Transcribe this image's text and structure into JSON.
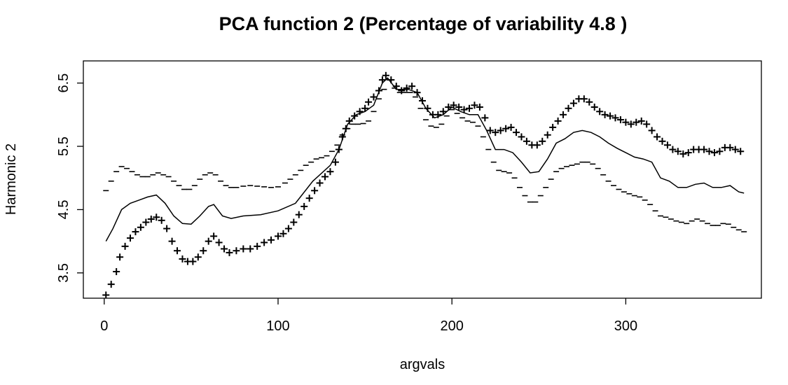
{
  "chart_data": {
    "type": "line",
    "title": "PCA function 2 (Percentage of variability 4.8 )",
    "xlabel": "argvals",
    "ylabel": "Harmonic 2",
    "xlim": [
      -12,
      378
    ],
    "ylim": [
      3.1,
      6.85
    ],
    "x_ticks": [
      0,
      100,
      200,
      300
    ],
    "y_ticks": [
      3.5,
      4.5,
      5.5,
      6.5
    ],
    "grid": false,
    "legend": "none",
    "series": [
      {
        "style": "line",
        "points": [
          [
            1,
            4.0
          ],
          [
            5,
            4.2
          ],
          [
            10,
            4.5
          ],
          [
            15,
            4.6
          ],
          [
            20,
            4.65
          ],
          [
            25,
            4.7
          ],
          [
            30,
            4.73
          ],
          [
            35,
            4.6
          ],
          [
            40,
            4.4
          ],
          [
            45,
            4.28
          ],
          [
            50,
            4.27
          ],
          [
            55,
            4.4
          ],
          [
            60,
            4.55
          ],
          [
            63,
            4.58
          ],
          [
            68,
            4.4
          ],
          [
            73,
            4.36
          ],
          [
            80,
            4.4
          ],
          [
            90,
            4.42
          ],
          [
            100,
            4.48
          ],
          [
            110,
            4.6
          ],
          [
            120,
            4.95
          ],
          [
            130,
            5.2
          ],
          [
            135,
            5.45
          ],
          [
            140,
            5.85
          ],
          [
            145,
            6.0
          ],
          [
            150,
            6.05
          ],
          [
            155,
            6.15
          ],
          [
            160,
            6.5
          ],
          [
            163,
            6.58
          ],
          [
            168,
            6.4
          ],
          [
            175,
            6.4
          ],
          [
            180,
            6.35
          ],
          [
            185,
            6.1
          ],
          [
            190,
            5.95
          ],
          [
            195,
            6.0
          ],
          [
            200,
            6.12
          ],
          [
            205,
            6.05
          ],
          [
            210,
            6.0
          ],
          [
            215,
            6.0
          ],
          [
            220,
            5.75
          ],
          [
            225,
            5.45
          ],
          [
            230,
            5.45
          ],
          [
            235,
            5.4
          ],
          [
            240,
            5.25
          ],
          [
            245,
            5.08
          ],
          [
            250,
            5.1
          ],
          [
            255,
            5.3
          ],
          [
            260,
            5.55
          ],
          [
            265,
            5.62
          ],
          [
            270,
            5.72
          ],
          [
            275,
            5.75
          ],
          [
            280,
            5.72
          ],
          [
            285,
            5.65
          ],
          [
            290,
            5.55
          ],
          [
            295,
            5.47
          ],
          [
            300,
            5.4
          ],
          [
            305,
            5.33
          ],
          [
            310,
            5.3
          ],
          [
            315,
            5.25
          ],
          [
            320,
            5.0
          ],
          [
            325,
            4.95
          ],
          [
            330,
            4.85
          ],
          [
            335,
            4.85
          ],
          [
            340,
            4.9
          ],
          [
            345,
            4.92
          ],
          [
            350,
            4.85
          ],
          [
            355,
            4.85
          ],
          [
            360,
            4.88
          ],
          [
            365,
            4.78
          ],
          [
            368,
            4.76
          ]
        ]
      },
      {
        "style": "plus",
        "points": [
          [
            1,
            3.15
          ],
          [
            4,
            3.32
          ],
          [
            7,
            3.52
          ],
          [
            9,
            3.75
          ],
          [
            12,
            3.92
          ],
          [
            15,
            4.05
          ],
          [
            18,
            4.15
          ],
          [
            21,
            4.22
          ],
          [
            24,
            4.3
          ],
          [
            27,
            4.35
          ],
          [
            30,
            4.38
          ],
          [
            33,
            4.33
          ],
          [
            36,
            4.2
          ],
          [
            39,
            4.0
          ],
          [
            42,
            3.85
          ],
          [
            45,
            3.72
          ],
          [
            48,
            3.68
          ],
          [
            51,
            3.68
          ],
          [
            54,
            3.75
          ],
          [
            57,
            3.85
          ],
          [
            60,
            4.0
          ],
          [
            63,
            4.08
          ],
          [
            66,
            3.98
          ],
          [
            69,
            3.88
          ],
          [
            72,
            3.82
          ],
          [
            76,
            3.85
          ],
          [
            80,
            3.88
          ],
          [
            84,
            3.88
          ],
          [
            88,
            3.92
          ],
          [
            92,
            3.98
          ],
          [
            96,
            4.02
          ],
          [
            100,
            4.08
          ],
          [
            103,
            4.12
          ],
          [
            106,
            4.2
          ],
          [
            109,
            4.3
          ],
          [
            112,
            4.42
          ],
          [
            115,
            4.55
          ],
          [
            118,
            4.68
          ],
          [
            121,
            4.8
          ],
          [
            124,
            4.92
          ],
          [
            127,
            5.02
          ],
          [
            130,
            5.1
          ],
          [
            133,
            5.25
          ],
          [
            135,
            5.45
          ],
          [
            137,
            5.65
          ],
          [
            139,
            5.78
          ],
          [
            141,
            5.9
          ],
          [
            144,
            5.98
          ],
          [
            147,
            6.05
          ],
          [
            150,
            6.1
          ],
          [
            152,
            6.2
          ],
          [
            155,
            6.28
          ],
          [
            158,
            6.38
          ],
          [
            160,
            6.55
          ],
          [
            162,
            6.62
          ],
          [
            165,
            6.55
          ],
          [
            168,
            6.45
          ],
          [
            171,
            6.38
          ],
          [
            174,
            6.42
          ],
          [
            177,
            6.45
          ],
          [
            180,
            6.35
          ],
          [
            183,
            6.22
          ],
          [
            186,
            6.1
          ],
          [
            189,
            6.0
          ],
          [
            192,
            6.0
          ],
          [
            195,
            6.05
          ],
          [
            198,
            6.12
          ],
          [
            201,
            6.15
          ],
          [
            204,
            6.12
          ],
          [
            207,
            6.08
          ],
          [
            210,
            6.1
          ],
          [
            213,
            6.15
          ],
          [
            216,
            6.12
          ],
          [
            219,
            5.95
          ],
          [
            222,
            5.75
          ],
          [
            225,
            5.72
          ],
          [
            228,
            5.75
          ],
          [
            231,
            5.78
          ],
          [
            234,
            5.8
          ],
          [
            237,
            5.72
          ],
          [
            240,
            5.65
          ],
          [
            243,
            5.58
          ],
          [
            246,
            5.52
          ],
          [
            249,
            5.52
          ],
          [
            252,
            5.58
          ],
          [
            255,
            5.68
          ],
          [
            258,
            5.8
          ],
          [
            261,
            5.9
          ],
          [
            264,
            6.0
          ],
          [
            267,
            6.1
          ],
          [
            270,
            6.18
          ],
          [
            273,
            6.25
          ],
          [
            276,
            6.25
          ],
          [
            279,
            6.2
          ],
          [
            282,
            6.12
          ],
          [
            285,
            6.05
          ],
          [
            288,
            6.0
          ],
          [
            291,
            5.98
          ],
          [
            294,
            5.95
          ],
          [
            297,
            5.92
          ],
          [
            300,
            5.88
          ],
          [
            303,
            5.85
          ],
          [
            306,
            5.88
          ],
          [
            309,
            5.9
          ],
          [
            312,
            5.85
          ],
          [
            315,
            5.75
          ],
          [
            318,
            5.65
          ],
          [
            321,
            5.58
          ],
          [
            324,
            5.52
          ],
          [
            327,
            5.45
          ],
          [
            330,
            5.42
          ],
          [
            333,
            5.38
          ],
          [
            336,
            5.4
          ],
          [
            339,
            5.45
          ],
          [
            342,
            5.45
          ],
          [
            345,
            5.45
          ],
          [
            348,
            5.42
          ],
          [
            351,
            5.4
          ],
          [
            354,
            5.42
          ],
          [
            357,
            5.48
          ],
          [
            360,
            5.48
          ],
          [
            363,
            5.45
          ],
          [
            366,
            5.42
          ]
        ]
      },
      {
        "style": "minus",
        "points": [
          [
            1,
            4.8
          ],
          [
            4,
            4.95
          ],
          [
            7,
            5.1
          ],
          [
            10,
            5.18
          ],
          [
            13,
            5.15
          ],
          [
            16,
            5.1
          ],
          [
            19,
            5.05
          ],
          [
            22,
            5.02
          ],
          [
            25,
            5.02
          ],
          [
            28,
            5.05
          ],
          [
            31,
            5.08
          ],
          [
            34,
            5.05
          ],
          [
            37,
            5.02
          ],
          [
            40,
            4.95
          ],
          [
            43,
            4.88
          ],
          [
            46,
            4.82
          ],
          [
            49,
            4.82
          ],
          [
            52,
            4.88
          ],
          [
            55,
            4.98
          ],
          [
            58,
            5.05
          ],
          [
            61,
            5.08
          ],
          [
            64,
            5.05
          ],
          [
            67,
            4.95
          ],
          [
            70,
            4.88
          ],
          [
            73,
            4.85
          ],
          [
            76,
            4.85
          ],
          [
            80,
            4.87
          ],
          [
            84,
            4.88
          ],
          [
            88,
            4.87
          ],
          [
            92,
            4.86
          ],
          [
            96,
            4.85
          ],
          [
            100,
            4.86
          ],
          [
            104,
            4.92
          ],
          [
            107,
            4.98
          ],
          [
            110,
            5.05
          ],
          [
            113,
            5.12
          ],
          [
            116,
            5.2
          ],
          [
            119,
            5.25
          ],
          [
            122,
            5.3
          ],
          [
            125,
            5.32
          ],
          [
            128,
            5.35
          ],
          [
            131,
            5.42
          ],
          [
            134,
            5.52
          ],
          [
            137,
            5.68
          ],
          [
            140,
            5.78
          ],
          [
            143,
            5.85
          ],
          [
            146,
            5.85
          ],
          [
            149,
            5.86
          ],
          [
            152,
            5.9
          ],
          [
            155,
            6.05
          ],
          [
            158,
            6.25
          ],
          [
            161,
            6.4
          ],
          [
            164,
            6.55
          ],
          [
            167,
            6.42
          ],
          [
            170,
            6.35
          ],
          [
            173,
            6.35
          ],
          [
            176,
            6.35
          ],
          [
            179,
            6.28
          ],
          [
            182,
            6.1
          ],
          [
            185,
            5.92
          ],
          [
            188,
            5.82
          ],
          [
            191,
            5.8
          ],
          [
            194,
            5.85
          ],
          [
            197,
            5.98
          ],
          [
            200,
            6.08
          ],
          [
            203,
            6.02
          ],
          [
            206,
            5.95
          ],
          [
            209,
            5.9
          ],
          [
            212,
            5.88
          ],
          [
            215,
            5.82
          ],
          [
            218,
            5.65
          ],
          [
            221,
            5.45
          ],
          [
            224,
            5.25
          ],
          [
            227,
            5.12
          ],
          [
            230,
            5.1
          ],
          [
            233,
            5.08
          ],
          [
            236,
            5.0
          ],
          [
            239,
            4.85
          ],
          [
            242,
            4.72
          ],
          [
            245,
            4.62
          ],
          [
            248,
            4.62
          ],
          [
            251,
            4.72
          ],
          [
            254,
            4.85
          ],
          [
            257,
            4.98
          ],
          [
            260,
            5.1
          ],
          [
            263,
            5.15
          ],
          [
            266,
            5.18
          ],
          [
            269,
            5.2
          ],
          [
            272,
            5.22
          ],
          [
            275,
            5.25
          ],
          [
            278,
            5.25
          ],
          [
            281,
            5.22
          ],
          [
            284,
            5.15
          ],
          [
            287,
            5.05
          ],
          [
            290,
            4.95
          ],
          [
            293,
            4.88
          ],
          [
            296,
            4.82
          ],
          [
            299,
            4.78
          ],
          [
            302,
            4.75
          ],
          [
            305,
            4.72
          ],
          [
            308,
            4.7
          ],
          [
            311,
            4.65
          ],
          [
            314,
            4.58
          ],
          [
            317,
            4.48
          ],
          [
            320,
            4.4
          ],
          [
            323,
            4.38
          ],
          [
            326,
            4.35
          ],
          [
            329,
            4.32
          ],
          [
            332,
            4.3
          ],
          [
            335,
            4.28
          ],
          [
            338,
            4.32
          ],
          [
            341,
            4.35
          ],
          [
            344,
            4.32
          ],
          [
            347,
            4.28
          ],
          [
            350,
            4.25
          ],
          [
            353,
            4.25
          ],
          [
            356,
            4.28
          ],
          [
            359,
            4.27
          ],
          [
            362,
            4.22
          ],
          [
            365,
            4.18
          ],
          [
            368,
            4.15
          ]
        ]
      }
    ]
  }
}
